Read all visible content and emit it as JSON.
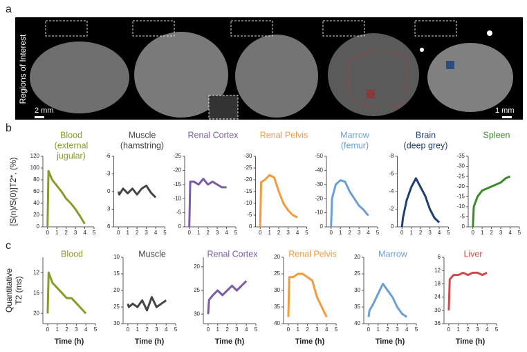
{
  "figure": {
    "panel_labels": [
      "a",
      "b",
      "c"
    ],
    "roi_label": "Regions of Interest",
    "scale_bars": [
      "2 mm",
      "1 mm"
    ]
  },
  "chart_data": [
    {
      "type": "line",
      "title": [
        "Blood",
        "(external",
        "jugular)"
      ],
      "ylabel": "[S(n)/S(0)]T2*, (%)",
      "x": [
        0,
        0.1,
        0.5,
        1,
        1.5,
        2,
        2.5,
        3,
        3.5,
        4
      ],
      "series": [
        {
          "color": "#8a9a2a",
          "values": [
            0,
            95,
            80,
            70,
            60,
            48,
            40,
            30,
            18,
            5
          ]
        }
      ],
      "xlim": [
        -0.5,
        5
      ],
      "xticks": [
        0,
        1,
        2,
        3,
        4,
        5
      ],
      "ylim": [
        0,
        120
      ],
      "yticks": [
        0,
        20,
        40,
        60,
        80,
        100,
        120
      ]
    },
    {
      "type": "line",
      "title": [
        "Muscle",
        "(hamstring)"
      ],
      "x": [
        0,
        0.1,
        0.5,
        1,
        1.5,
        2,
        2.5,
        3,
        3.5,
        4
      ],
      "series": [
        {
          "color": "#444444",
          "values": [
            0,
            0.5,
            -0.5,
            0.3,
            -0.5,
            0.5,
            -0.5,
            -1,
            0.2,
            1
          ]
        }
      ],
      "xlim": [
        -0.5,
        5
      ],
      "xticks": [
        0,
        1,
        2,
        3,
        4,
        5
      ],
      "ylim": [
        6,
        -6
      ],
      "yticks": [
        -6,
        -3,
        0,
        3,
        6
      ]
    },
    {
      "type": "line",
      "title": [
        "Renal Cortex"
      ],
      "x": [
        0,
        0.1,
        0.5,
        1,
        1.5,
        2,
        2.5,
        3,
        3.5,
        4
      ],
      "series": [
        {
          "color": "#7b5aa6",
          "values": [
            0,
            -16,
            -16,
            -15,
            -17,
            -15,
            -16,
            -15,
            -14,
            -14
          ]
        }
      ],
      "xlim": [
        -0.5,
        5
      ],
      "xticks": [
        0,
        1,
        2,
        3,
        4,
        5
      ],
      "ylim": [
        0,
        -25
      ],
      "yticks": [
        -25,
        -20,
        -15,
        -10,
        -5,
        0
      ]
    },
    {
      "type": "line",
      "title": [
        "Renal Pelvis"
      ],
      "x": [
        0,
        0.1,
        0.5,
        1,
        1.5,
        2,
        2.5,
        3,
        3.5,
        4
      ],
      "series": [
        {
          "color": "#f39a3a",
          "values": [
            0,
            -19,
            -20,
            -22,
            -21,
            -15,
            -10,
            -7,
            -5,
            -4
          ]
        }
      ],
      "xlim": [
        -0.5,
        5
      ],
      "xticks": [
        0,
        1,
        2,
        3,
        4,
        5
      ],
      "ylim": [
        0,
        -30
      ],
      "yticks": [
        -30,
        -25,
        -20,
        -15,
        -10,
        -5,
        0
      ]
    },
    {
      "type": "line",
      "title": [
        "Marrow",
        "(femur)"
      ],
      "x": [
        0,
        0.1,
        0.5,
        1,
        1.5,
        2,
        2.5,
        3,
        3.5,
        4
      ],
      "series": [
        {
          "color": "#6a9fd4",
          "values": [
            0,
            -20,
            -30,
            -33,
            -32,
            -25,
            -20,
            -15,
            -12,
            -8
          ]
        }
      ],
      "xlim": [
        -0.5,
        5
      ],
      "xticks": [
        0,
        1,
        2,
        3,
        4,
        5
      ],
      "ylim": [
        0,
        -50
      ],
      "yticks": [
        -50,
        -40,
        -30,
        -20,
        -10,
        0
      ]
    },
    {
      "type": "line",
      "title": [
        "Brain",
        "(deep grey)"
      ],
      "x": [
        0,
        0.1,
        0.5,
        1,
        1.5,
        2,
        2.5,
        3,
        3.5,
        4
      ],
      "series": [
        {
          "color": "#1f3f6e",
          "values": [
            0,
            -1,
            -3,
            -4.5,
            -5.5,
            -4.5,
            -3.5,
            -2,
            -1,
            -0.5
          ]
        }
      ],
      "xlim": [
        -0.5,
        5
      ],
      "xticks": [
        0,
        1,
        2,
        3,
        4,
        5
      ],
      "ylim": [
        0,
        -8
      ],
      "yticks": [
        -8,
        -6,
        -4,
        -2,
        0
      ]
    },
    {
      "type": "line",
      "title": [
        "Spleen"
      ],
      "x": [
        0,
        0.1,
        0.5,
        1,
        1.5,
        2,
        2.5,
        3,
        3.5,
        4
      ],
      "series": [
        {
          "color": "#3a8a2a",
          "values": [
            0,
            -10,
            -15,
            -18,
            -19,
            -20,
            -21,
            -22,
            -24,
            -25
          ]
        }
      ],
      "xlim": [
        -0.5,
        5
      ],
      "xticks": [
        0,
        1,
        2,
        3,
        4,
        5
      ],
      "ylim": [
        0,
        -35
      ],
      "yticks": [
        -35,
        -30,
        -25,
        -20,
        -15,
        -10,
        -5,
        0
      ]
    },
    {
      "type": "line",
      "title": [
        "Blood"
      ],
      "ylabel": [
        "Quantitative",
        "T2 (ms)"
      ],
      "xlabel": "Time (h)",
      "x": [
        0,
        0.1,
        0.5,
        1,
        1.5,
        2,
        2.5,
        3,
        3.5,
        4
      ],
      "series": [
        {
          "color": "#8a9a2a",
          "values": [
            20,
            12,
            14,
            15,
            16,
            17,
            17,
            18,
            19,
            20
          ]
        }
      ],
      "xlim": [
        -0.5,
        5
      ],
      "xticks": [
        0,
        1,
        2,
        3,
        4,
        5
      ],
      "ylim": [
        22,
        9
      ],
      "yticks": [
        12,
        16,
        20
      ]
    },
    {
      "type": "line",
      "title": [
        "Muscle"
      ],
      "xlabel": "Time (h)",
      "x": [
        0,
        0.1,
        0.5,
        1,
        1.5,
        2,
        2.5,
        3,
        3.5,
        4
      ],
      "series": [
        {
          "color": "#444444",
          "values": [
            24,
            25,
            24,
            25,
            23,
            26,
            22,
            25,
            24,
            23
          ]
        }
      ],
      "xlim": [
        -0.5,
        5
      ],
      "xticks": [
        0,
        1,
        2,
        3,
        4,
        5
      ],
      "ylim": [
        30,
        10
      ],
      "yticks": [
        10,
        15,
        20,
        25,
        30
      ]
    },
    {
      "type": "line",
      "title": [
        "Renal Cortex"
      ],
      "xlabel": "Time (h)",
      "x": [
        0,
        0.1,
        0.5,
        1,
        1.5,
        2,
        2.5,
        3,
        3.5,
        4
      ],
      "series": [
        {
          "color": "#7b5aa6",
          "values": [
            30,
            27,
            26,
            25,
            26,
            25,
            24,
            25,
            24,
            23
          ]
        }
      ],
      "xlim": [
        -0.5,
        5
      ],
      "xticks": [
        0,
        1,
        2,
        3,
        4,
        5
      ],
      "ylim": [
        32,
        18
      ],
      "yticks": [
        20,
        25,
        30
      ]
    },
    {
      "type": "line",
      "title": [
        "Renal Pelvis"
      ],
      "xlabel": "Time (h)",
      "x": [
        0,
        0.1,
        0.5,
        1,
        1.5,
        2,
        2.5,
        3,
        3.5,
        4
      ],
      "series": [
        {
          "color": "#f39a3a",
          "values": [
            38,
            26,
            26,
            25,
            25,
            26,
            27,
            32,
            35,
            38
          ]
        }
      ],
      "xlim": [
        -0.5,
        5
      ],
      "xticks": [
        0,
        1,
        2,
        3,
        4,
        5
      ],
      "ylim": [
        40,
        20
      ],
      "yticks": [
        20,
        25,
        30,
        35,
        40
      ]
    },
    {
      "type": "line",
      "title": [
        "Marrow"
      ],
      "xlabel": "Time (h)",
      "x": [
        0,
        0.1,
        0.5,
        1,
        1.5,
        2,
        2.5,
        3,
        3.5,
        4
      ],
      "series": [
        {
          "color": "#6a9fd4",
          "values": [
            38,
            36,
            34,
            31,
            28,
            30,
            32,
            35,
            37,
            38
          ]
        }
      ],
      "xlim": [
        -0.5,
        5
      ],
      "xticks": [
        0,
        1,
        2,
        3,
        4,
        5
      ],
      "ylim": [
        40,
        20
      ],
      "yticks": [
        20,
        25,
        30,
        35,
        40
      ]
    },
    {
      "type": "line",
      "title": [
        "Liver"
      ],
      "xlabel": "Time (h)",
      "x": [
        0,
        0.1,
        0.5,
        1,
        1.5,
        2,
        2.5,
        3,
        3.5,
        4
      ],
      "series": [
        {
          "color": "#d04a4a",
          "values": [
            30,
            16,
            14,
            14,
            13,
            14,
            13,
            13,
            14,
            13
          ]
        }
      ],
      "xlim": [
        -0.5,
        5
      ],
      "xticks": [
        0,
        1,
        2,
        3,
        4,
        5
      ],
      "ylim": [
        36,
        6
      ],
      "yticks": [
        6,
        12,
        18,
        24,
        30,
        36
      ]
    }
  ]
}
